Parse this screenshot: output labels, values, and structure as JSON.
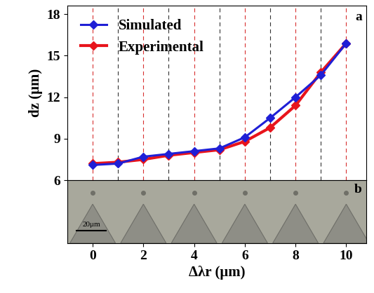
{
  "chart_data": {
    "type": "line",
    "x_label": "Δλr (μm)",
    "y_label": "dz (μm)",
    "x": [
      0,
      1,
      2,
      3,
      4,
      5,
      6,
      7,
      8,
      9,
      10
    ],
    "series": [
      {
        "name": "Simulated",
        "color": "#1f1fd6",
        "marker": "diamond",
        "line_style": "solid",
        "values": [
          7.1,
          7.2,
          7.7,
          7.9,
          8.1,
          8.3,
          9.1,
          10.5,
          12.0,
          13.6,
          15.9
        ]
      },
      {
        "name": "Experimental",
        "color": "#e8141c",
        "marker": "diamond",
        "line_style": "solid",
        "values": [
          7.2,
          7.3,
          7.5,
          7.8,
          8.0,
          8.2,
          8.8,
          9.8,
          11.4,
          13.8,
          15.9
        ]
      }
    ],
    "xlim": [
      -1,
      10.8
    ],
    "xticks": [
      0,
      2,
      4,
      6,
      8,
      10
    ],
    "ylim": [
      6,
      18.6
    ],
    "yticks": [
      6,
      9,
      12,
      15,
      18
    ],
    "legend": "upper left",
    "grid": false,
    "annotations": [
      "a",
      "b",
      "20μm"
    ]
  }
}
